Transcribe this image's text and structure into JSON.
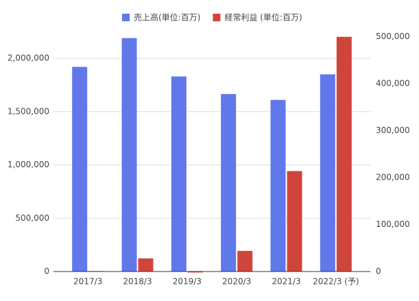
{
  "chart_data": {
    "type": "bar",
    "categories": [
      "2017/3",
      "2018/3",
      "2019/3",
      "2020/3",
      "2021/3",
      "2022/3 (予)"
    ],
    "series": [
      {
        "name": "売上高(単位:百万)",
        "color": "#6078ea",
        "values": [
          1920000,
          2190000,
          1830000,
          1665000,
          1610000,
          1850000
        ]
      },
      {
        "name": "経常利益 (単位:百万)",
        "color": "#d0453b",
        "axis": "y2",
        "values": [
          1000,
          28000,
          -2000,
          44000,
          214000,
          500000
        ]
      }
    ],
    "ylim": [
      0,
      2290000
    ],
    "yticks": [
      0,
      {
        "value": 500000,
        "label": "500,000"
      },
      {
        "value": 1000000,
        "label": "1,000,000"
      },
      {
        "value": 1500000,
        "label": "1,500,000"
      },
      {
        "value": 2000000,
        "label": "2,000,000"
      }
    ],
    "y2lim": [
      0,
      520000
    ],
    "y2ticks": [
      0,
      {
        "value": 100000,
        "label": "100,000"
      },
      {
        "value": 200000,
        "label": "200,000"
      },
      {
        "value": 300000,
        "label": "300,000"
      },
      {
        "value": 400000,
        "label": "400,000"
      },
      {
        "value": 500000,
        "label": "500,000"
      }
    ],
    "grid": true,
    "legend": "top"
  }
}
